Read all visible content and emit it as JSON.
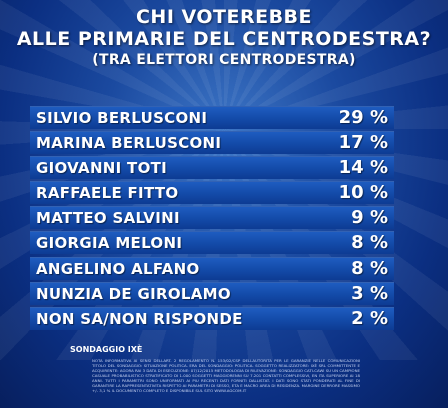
{
  "title": {
    "line1": "CHI VOTEREBBE",
    "line2": "ALLE PRIMARIE DEL CENTRODESTRA?",
    "subtitle": "(TRA ELETTORI CENTRODESTRA)"
  },
  "source": "SONDAGGIO IXÈ",
  "footnote": "NOTA INFORMATIVA AI SENSI DELLART. 2 REGOLAMENTO N. 153/02/CSP DELLAUTORITA PER LE GARANZIE NELLE COMUNICAZIONI TITOLO DEL SONDAGGIO: SITUAZIONE POLITICA. ERA DEL SONDAGGIO: POLITICA. SOGGETTO REALIZZATORE: IXÈ SRL COMMITTENTE E ACQUIRENTE: AGORA RAI 3 DATA DI ESECUZIONE: 07/12/2015 METODOLOGIA DI RILEVAZIONE: SONDAGGIO CATI-CAWI SU UN CAMPIONE CASUALE PROBABILISTICO STRATIFICATO DI 1.000 SOGGETTI MAGGIORENNI SU 7.201 CONTATTI COMPLESSIVI, EN ITA SUPERIORE AI 18 ANNI. TUTTI I PARAMETRI SONO UNIFORMATI AI PIU RECENTI DATI FORNITI DALLISTAT. I DATI SONO STATI PONDERATI AL FINE DI GARANTIRE LA RAPPRESENTATIVITA RISPETTO AI PARAMETRI DI SESSO, ETA E MACRO AREA DI RESIDENZA. MARGINE DERRORE MASSIMO +/- 3,1 % IL DOCUMENTO COMPLETO E DISPONIBILE SUL SITO WWW.AGCOM.IT",
  "chart_data": {
    "type": "table",
    "title": "CHI VOTEREBBE ALLE PRIMARIE DEL CENTRODESTRA?",
    "subtitle": "(TRA ELETTORI CENTRODESTRA)",
    "unit": "%",
    "categories": [
      "SILVIO BERLUSCONI",
      "MARINA BERLUSCONI",
      "GIOVANNI TOTI",
      "RAFFAELE FITTO",
      "MATTEO SALVINI",
      "GIORGIA MELONI",
      "ANGELINO ALFANO",
      "NUNZIA DE GIROLAMO",
      "NON SA/NON RISPONDE"
    ],
    "values": [
      29,
      17,
      14,
      10,
      9,
      8,
      8,
      3,
      2
    ],
    "value_labels": [
      "29 %",
      "17 %",
      "14 %",
      "10 %",
      "9 %",
      "8 %",
      "8 %",
      "3 %",
      "2 %"
    ]
  },
  "colors": {
    "background": "#0b2f82",
    "row": "#134aa8",
    "text": "#ffffff"
  }
}
